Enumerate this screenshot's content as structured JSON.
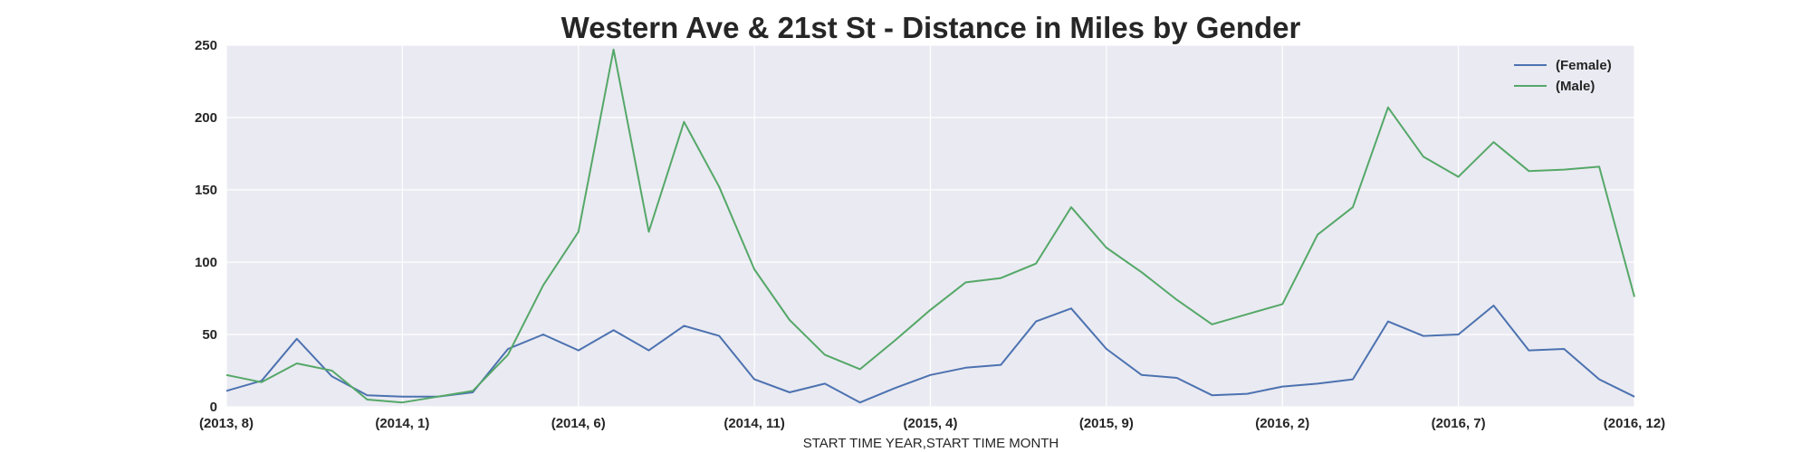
{
  "chart_data": {
    "type": "line",
    "title": "Western Ave & 21st St - Distance in Miles by Gender",
    "xlabel": "START TIME YEAR,START TIME MONTH",
    "ylabel": "",
    "ylim": [
      0,
      250
    ],
    "yticks": [
      0,
      50,
      100,
      150,
      200,
      250
    ],
    "x": [
      "(2013, 8)",
      "(2013, 9)",
      "(2013, 10)",
      "(2013, 11)",
      "(2013, 12)",
      "(2014, 1)",
      "(2014, 2)",
      "(2014, 3)",
      "(2014, 4)",
      "(2014, 5)",
      "(2014, 6)",
      "(2014, 7)",
      "(2014, 8)",
      "(2014, 9)",
      "(2014, 10)",
      "(2014, 11)",
      "(2014, 12)",
      "(2015, 1)",
      "(2015, 2)",
      "(2015, 3)",
      "(2015, 4)",
      "(2015, 5)",
      "(2015, 6)",
      "(2015, 7)",
      "(2015, 8)",
      "(2015, 9)",
      "(2015, 10)",
      "(2015, 11)",
      "(2015, 12)",
      "(2016, 1)",
      "(2016, 2)",
      "(2016, 3)",
      "(2016, 4)",
      "(2016, 5)",
      "(2016, 6)",
      "(2016, 7)",
      "(2016, 8)",
      "(2016, 9)",
      "(2016, 10)",
      "(2016, 11)",
      "(2016, 12)"
    ],
    "xtick_labels": [
      "(2013, 8)",
      "(2014, 1)",
      "(2014, 6)",
      "(2014, 11)",
      "(2015, 4)",
      "(2015, 9)",
      "(2016, 2)",
      "(2016, 7)",
      "(2016, 12)"
    ],
    "grid": true,
    "legend_position": "top-right",
    "series": [
      {
        "name": "(Female)",
        "color": "#4c72b0",
        "values": [
          11,
          18,
          47,
          21,
          8,
          7,
          7,
          10,
          40,
          50,
          39,
          53,
          39,
          56,
          49,
          19,
          10,
          16,
          3,
          13,
          22,
          27,
          29,
          59,
          68,
          40,
          22,
          20,
          8,
          9,
          14,
          16,
          19,
          59,
          49,
          50,
          70,
          39,
          40,
          19,
          7
        ]
      },
      {
        "name": "(Male)",
        "color": "#55a868",
        "values": [
          22,
          17,
          30,
          25,
          5,
          3,
          7,
          11,
          36,
          84,
          121,
          247,
          121,
          197,
          152,
          95,
          60,
          36,
          26,
          46,
          67,
          86,
          89,
          99,
          138,
          110,
          93,
          74,
          57,
          64,
          71,
          119,
          138,
          207,
          173,
          159,
          183,
          163,
          164,
          166,
          76
        ]
      }
    ]
  }
}
